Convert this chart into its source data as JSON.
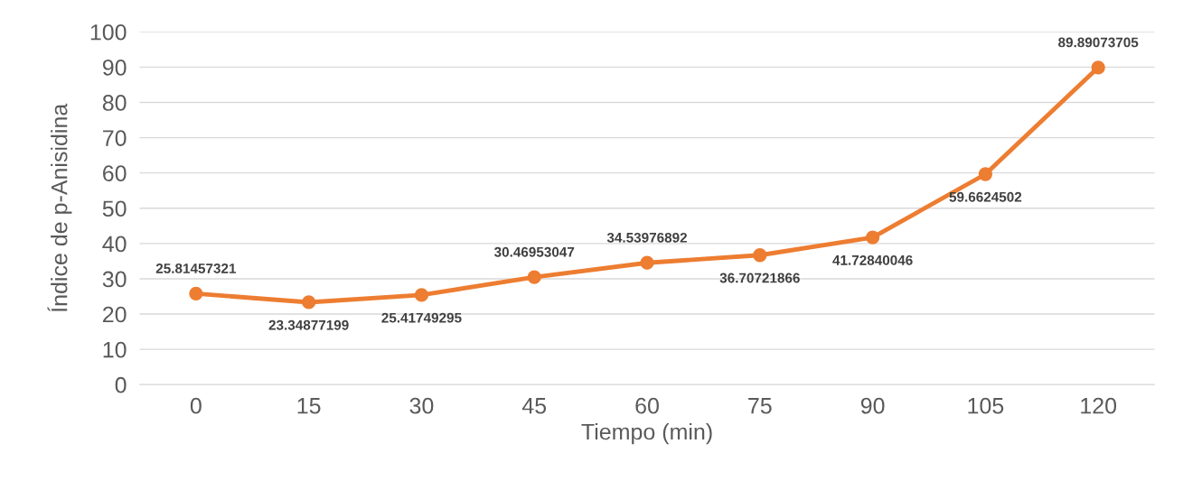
{
  "chart_data": {
    "type": "line",
    "xlabel": "Tiempo (min)",
    "ylabel": "Índice de p-Anisidina",
    "categories": [
      "0",
      "15",
      "30",
      "45",
      "60",
      "75",
      "90",
      "105",
      "120"
    ],
    "series": [
      {
        "color": "#ed7d31",
        "values": [
          25.81457321,
          23.34877199,
          25.41749295,
          30.46953047,
          34.53976892,
          36.70721866,
          41.72840046,
          59.6624502,
          89.89073705
        ]
      }
    ],
    "ylim": [
      0,
      100
    ],
    "yticks": [
      0,
      10,
      20,
      30,
      40,
      50,
      60,
      70,
      80,
      90,
      100
    ],
    "grid": "y",
    "marker": "circle",
    "line_style": "solid",
    "data_labels": true
  }
}
